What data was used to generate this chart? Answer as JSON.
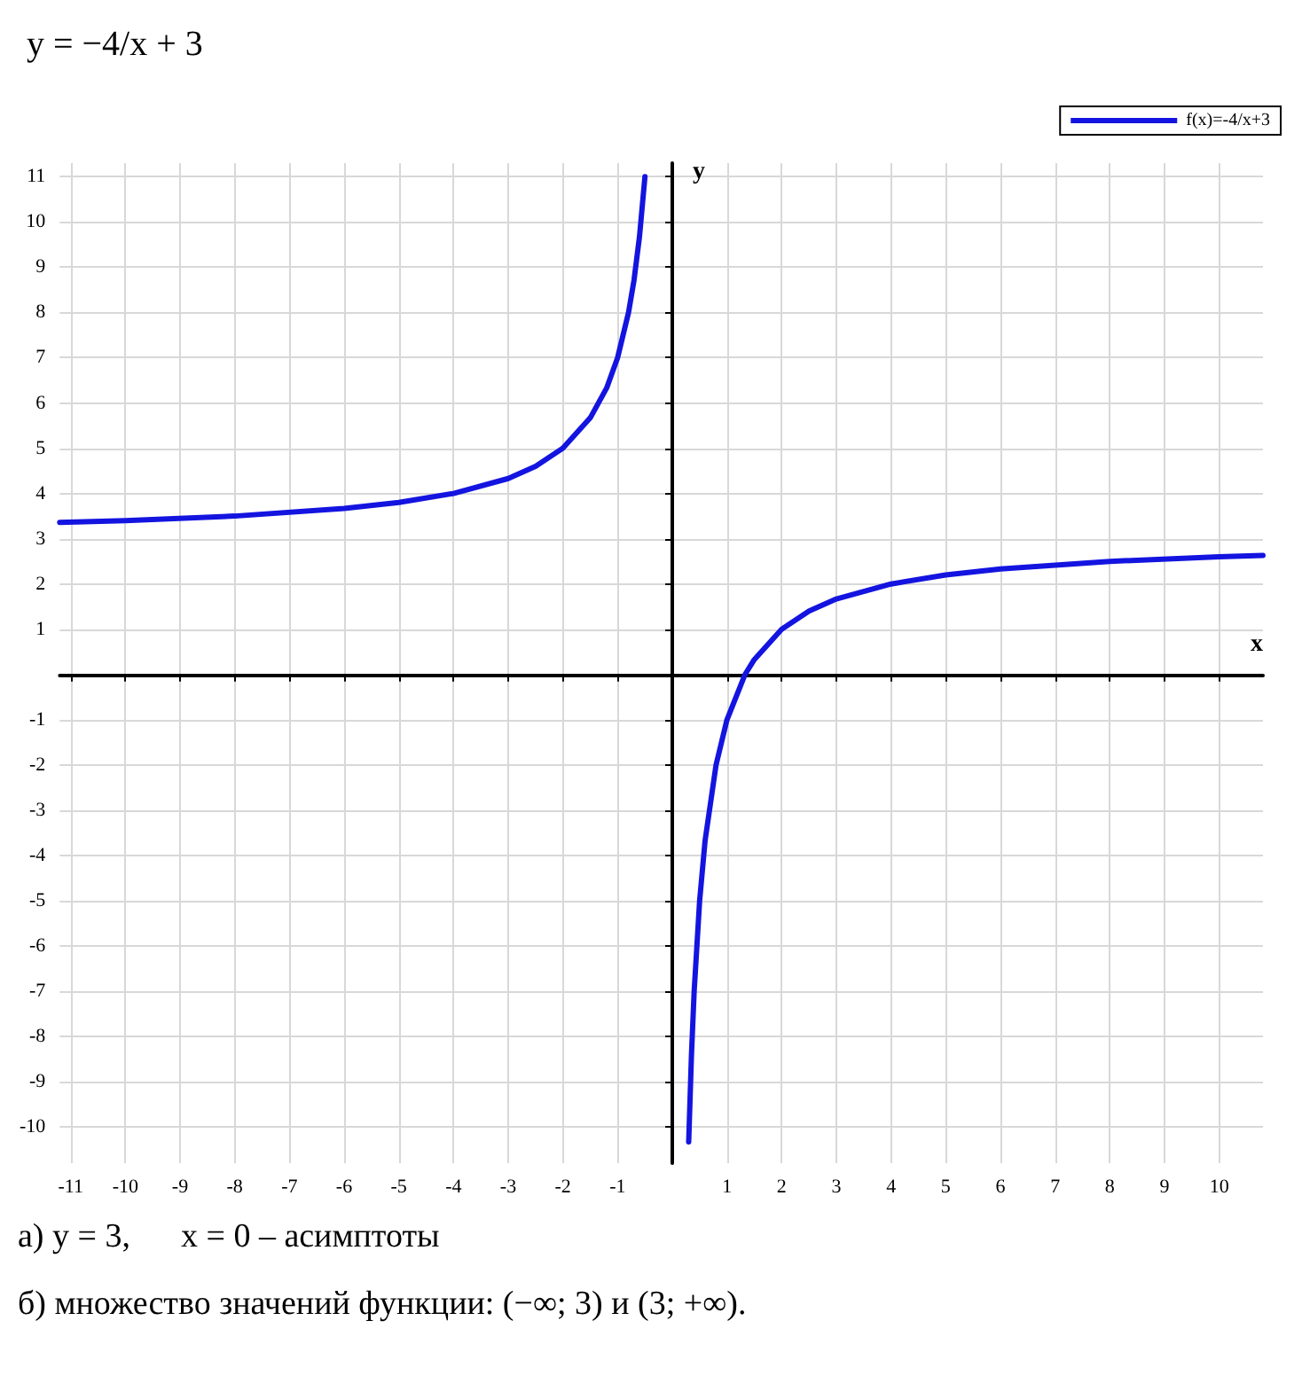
{
  "chart_data": {
    "type": "line",
    "title": "y = −4/x + 3",
    "xlabel": "x",
    "ylabel": "y",
    "x": [
      -11.2,
      -10,
      -8,
      -6,
      -5,
      -4,
      -3,
      -2.5,
      -2,
      -1.5,
      -1.2,
      -1,
      -0.8,
      -0.7,
      -0.6,
      -0.5,
      0,
      0.3,
      0.35,
      0.4,
      0.5,
      0.6,
      0.8,
      1,
      1.33,
      1.5,
      2,
      2.5,
      3,
      4,
      5,
      6,
      8,
      10,
      10.8
    ],
    "series": [
      {
        "name": "f(x)=-4/x+3",
        "color": "#1414e0",
        "values": [
          3.36,
          3.4,
          3.5,
          3.67,
          3.8,
          4,
          4.33,
          4.6,
          5,
          5.67,
          6.33,
          7,
          8,
          8.71,
          9.67,
          11,
          null,
          -10.33,
          -8.43,
          -7,
          -5,
          -3.67,
          -2,
          -1,
          0,
          0.33,
          1,
          1.4,
          1.67,
          2,
          2.2,
          2.33,
          2.5,
          2.6,
          2.63
        ]
      }
    ],
    "xlim": [
      -11.2,
      10.8
    ],
    "ylim": [
      -10.8,
      11.3
    ],
    "xticks": [
      -11,
      -10,
      -9,
      -8,
      -7,
      -6,
      -5,
      -4,
      -3,
      -2,
      -1,
      {
        "value": 0,
        "label": null
      },
      1,
      2,
      3,
      4,
      5,
      6,
      7,
      8,
      9,
      10
    ],
    "yticks": [
      -10,
      -9,
      -8,
      -7,
      -6,
      -5,
      -4,
      -3,
      -2,
      -1,
      {
        "value": 0,
        "label": null
      },
      1,
      2,
      3,
      4,
      5,
      6,
      7,
      8,
      9,
      10,
      11
    ],
    "grid": true,
    "legend": "top right",
    "marker": "none",
    "line_style": "solid",
    "annotations": [
      "а) y = 3,      x = 0 – асимптоты",
      "б) множество значений функции: (−∞; 3) и (3; +∞)."
    ]
  }
}
